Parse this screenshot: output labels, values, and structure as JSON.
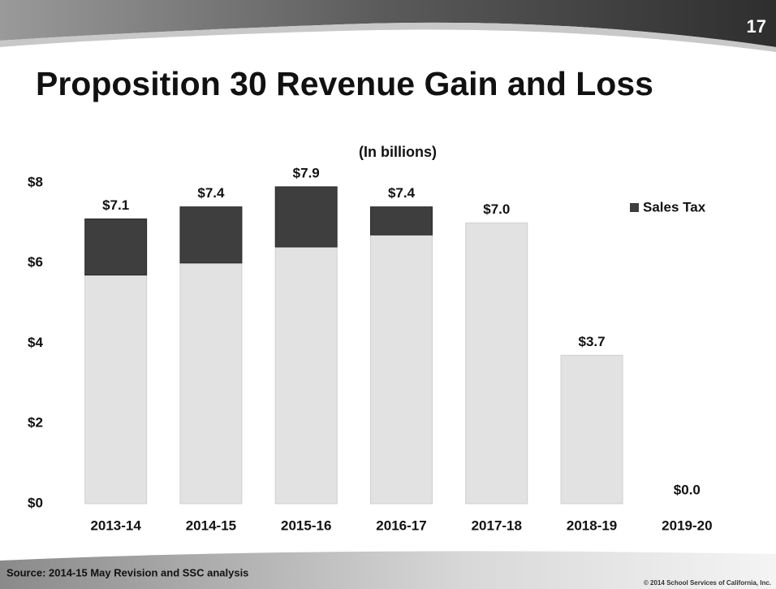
{
  "page_number": "17",
  "source": "Source: 2014-15 May Revision and SSC analysis",
  "copyright": "© 2014 School Services of California, Inc.",
  "chart_data": {
    "type": "stacked_bar",
    "title": "Proposition 30 Revenue Gain and Loss",
    "subtitle": "(In billions)",
    "categories": [
      "2013-14",
      "2014-15",
      "2015-16",
      "2016-17",
      "2017-18",
      "2018-19",
      "2019-20"
    ],
    "series": [
      {
        "color": "#e2e2e2",
        "values": [
          5.7,
          6.0,
          6.4,
          6.7,
          7.0,
          3.7,
          0
        ]
      },
      {
        "name": "Sales Tax",
        "color": "#3e3e3e",
        "values": [
          1.4,
          1.4,
          1.5,
          0.7,
          0,
          0,
          0
        ]
      }
    ],
    "totals": [
      7.1,
      7.4,
      7.9,
      7.4,
      7.0,
      3.7,
      0.0
    ],
    "total_labels": [
      "$7.1",
      "$7.4",
      "$7.9",
      "$7.4",
      "$7.0",
      "$3.7",
      "$0.0"
    ],
    "ylim": [
      0,
      8
    ],
    "yticks": [
      {
        "value": 0,
        "label": "$0"
      },
      {
        "value": 2,
        "label": "$2"
      },
      {
        "value": 4,
        "label": "$4"
      },
      {
        "value": 6,
        "label": "$6"
      },
      {
        "value": 8,
        "label": "$8"
      }
    ],
    "legend": "upper right"
  }
}
